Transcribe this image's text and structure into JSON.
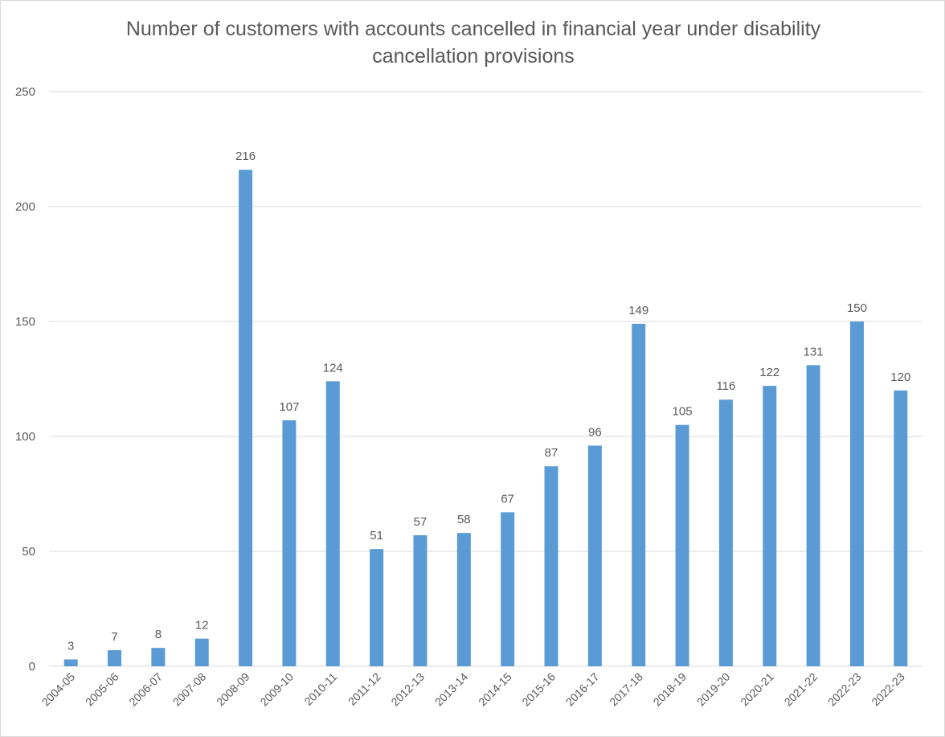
{
  "chart_data": {
    "type": "bar",
    "title": "Number of customers with accounts cancelled in financial year under disability cancellation provisions",
    "xlabel": "",
    "ylabel": "",
    "ylim": [
      0,
      250
    ],
    "yticks": [
      0,
      50,
      100,
      150,
      200,
      250
    ],
    "grid": true,
    "legend": "none",
    "bar_color": "#5b9bd5",
    "gridline_color": "#d9d9d9",
    "categories": [
      "2004-05",
      "2005-06",
      "2006-07",
      "2007-08",
      "2008-09",
      "2009-10",
      "2010-11",
      "2011-12",
      "2012-13",
      "2013-14",
      "2014-15",
      "2015-16",
      "2016-17",
      "2017-18",
      "2018-19",
      "2019-20",
      "2020-21",
      "2021-22",
      "2022-23",
      "2022-23"
    ],
    "values": [
      3,
      7,
      8,
      12,
      216,
      107,
      124,
      51,
      57,
      58,
      67,
      87,
      96,
      149,
      105,
      116,
      122,
      131,
      150,
      120
    ]
  }
}
